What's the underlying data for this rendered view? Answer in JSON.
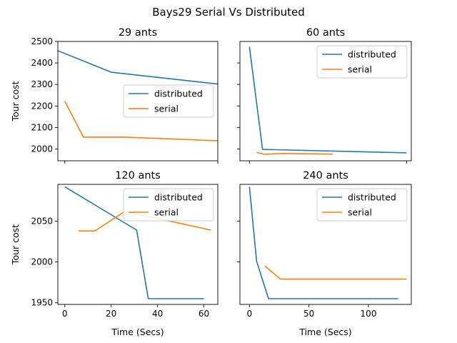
{
  "suptitle": "Bays29 Serial Vs Distributed",
  "colors": {
    "distributed": "#1f77b4",
    "serial": "#ff7f0e"
  },
  "chart_data": [
    {
      "type": "line",
      "title": "29 ants",
      "ylabel": "Tour cost",
      "xlabel": "",
      "xlim": [
        -3,
        66
      ],
      "ylim": [
        1945,
        2500
      ],
      "yticks": [
        2000,
        2100,
        2200,
        2300,
        2400,
        2500
      ],
      "ytick_labels_shown": true,
      "xticks": [
        0,
        66
      ],
      "xtick_labels_shown": false,
      "legend": {
        "placement": "center-right",
        "entries": [
          "distributed",
          "serial"
        ]
      },
      "series": [
        {
          "name": "distributed",
          "color": "#1f77b4",
          "x": [
            -3,
            20,
            66
          ],
          "y": [
            2457,
            2357,
            2302
          ]
        },
        {
          "name": "serial",
          "color": "#ff7f0e",
          "x": [
            0,
            8,
            26,
            66
          ],
          "y": [
            2222,
            2055,
            2055,
            2038
          ]
        }
      ]
    },
    {
      "type": "line",
      "title": "60 ants",
      "ylabel": "",
      "xlabel": "",
      "xlim": [
        -8,
        136
      ],
      "ylim": [
        1945,
        2500
      ],
      "yticks": [
        2000,
        2100,
        2200,
        2300,
        2400
      ],
      "ytick_labels_shown": false,
      "xticks": [
        0,
        132
      ],
      "xtick_labels_shown": false,
      "legend": {
        "placement": "top-right",
        "entries": [
          "distributed",
          "serial"
        ]
      },
      "series": [
        {
          "name": "distributed",
          "color": "#1f77b4",
          "x": [
            0,
            11,
            132
          ],
          "y": [
            2475,
            1998,
            1982
          ]
        },
        {
          "name": "serial",
          "color": "#ff7f0e",
          "x": [
            6,
            13,
            27,
            70
          ],
          "y": [
            1984,
            1975,
            1979,
            1976
          ]
        }
      ]
    },
    {
      "type": "line",
      "title": "120 ants",
      "ylabel": "Tour cost",
      "xlabel": "Time (Secs)",
      "xlim": [
        -3,
        66
      ],
      "ylim": [
        1948,
        2095
      ],
      "yticks": [
        1950,
        2000,
        2050
      ],
      "ytick_labels_shown": true,
      "xticks": [
        0,
        20,
        40,
        60
      ],
      "xtick_labels_shown": true,
      "legend": {
        "placement": "top-right",
        "entries": [
          "distributed",
          "serial"
        ]
      },
      "series": [
        {
          "name": "distributed",
          "color": "#1f77b4",
          "x": [
            0,
            31,
            36,
            60
          ],
          "y": [
            2092,
            2039,
            1955,
            1955
          ]
        },
        {
          "name": "serial",
          "color": "#ff7f0e",
          "x": [
            6,
            13,
            26,
            63
          ],
          "y": [
            2038,
            2038,
            2062,
            2039
          ]
        }
      ]
    },
    {
      "type": "line",
      "title": "240 ants",
      "ylabel": "",
      "xlabel": "Time (Secs)",
      "xlim": [
        -8,
        136
      ],
      "ylim": [
        1948,
        2095
      ],
      "yticks": [
        2000,
        2050
      ],
      "ytick_labels_shown": false,
      "xticks": [
        0,
        50,
        100
      ],
      "xtick_labels_shown": true,
      "legend": {
        "placement": "top-right",
        "entries": [
          "distributed",
          "serial"
        ]
      },
      "series": [
        {
          "name": "distributed",
          "color": "#1f77b4",
          "x": [
            0,
            6,
            16,
            125
          ],
          "y": [
            2092,
            2001,
            1955,
            1955
          ]
        },
        {
          "name": "serial",
          "color": "#ff7f0e",
          "x": [
            13,
            26,
            132
          ],
          "y": [
            1995,
            1979,
            1979
          ]
        }
      ]
    }
  ]
}
